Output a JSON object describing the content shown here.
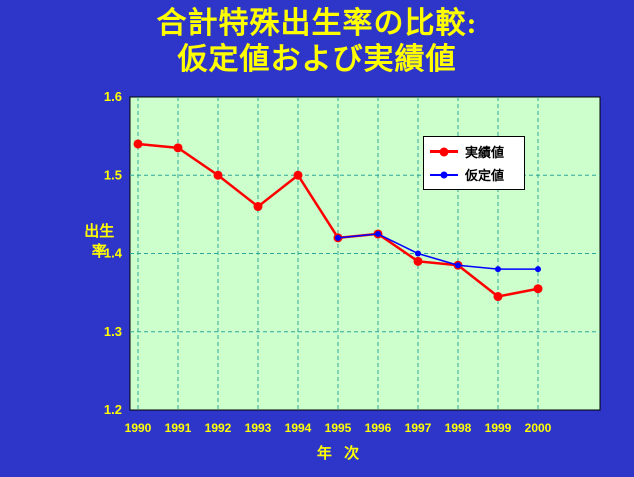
{
  "title_line1": "合計特殊出生率の比較:",
  "title_line2": "仮定値および実績値",
  "chart_data": {
    "type": "line",
    "title": "合計特殊出生率の比較: 仮定値および実績値",
    "categories": [
      "1990",
      "1991",
      "1992",
      "1993",
      "1994",
      "1995",
      "1996",
      "1997",
      "1998",
      "1999",
      "2000"
    ],
    "series": [
      {
        "name": "実績値",
        "color": "#ff0000",
        "values": [
          1.54,
          1.535,
          1.5,
          1.46,
          1.5,
          1.42,
          1.425,
          1.39,
          1.385,
          1.345,
          1.355
        ]
      },
      {
        "name": "仮定値",
        "color": "#0000ff",
        "values": [
          null,
          null,
          null,
          null,
          null,
          1.42,
          1.425,
          1.4,
          1.385,
          1.38,
          1.38
        ]
      }
    ],
    "xlabel": "年 次",
    "ylabel": "出生率",
    "ylim": [
      1.2,
      1.6
    ],
    "yticks": [
      1.2,
      1.3,
      1.4,
      1.5,
      1.6
    ],
    "grid": true,
    "legend_position": "top-right",
    "colors": {
      "background": "#2e35c9",
      "plot_bg": "#ccffcc",
      "grid_color": "#2fa89a",
      "tick_color": "#ffff00",
      "title_color": "#ffff00",
      "plot_border": "#000000"
    }
  }
}
